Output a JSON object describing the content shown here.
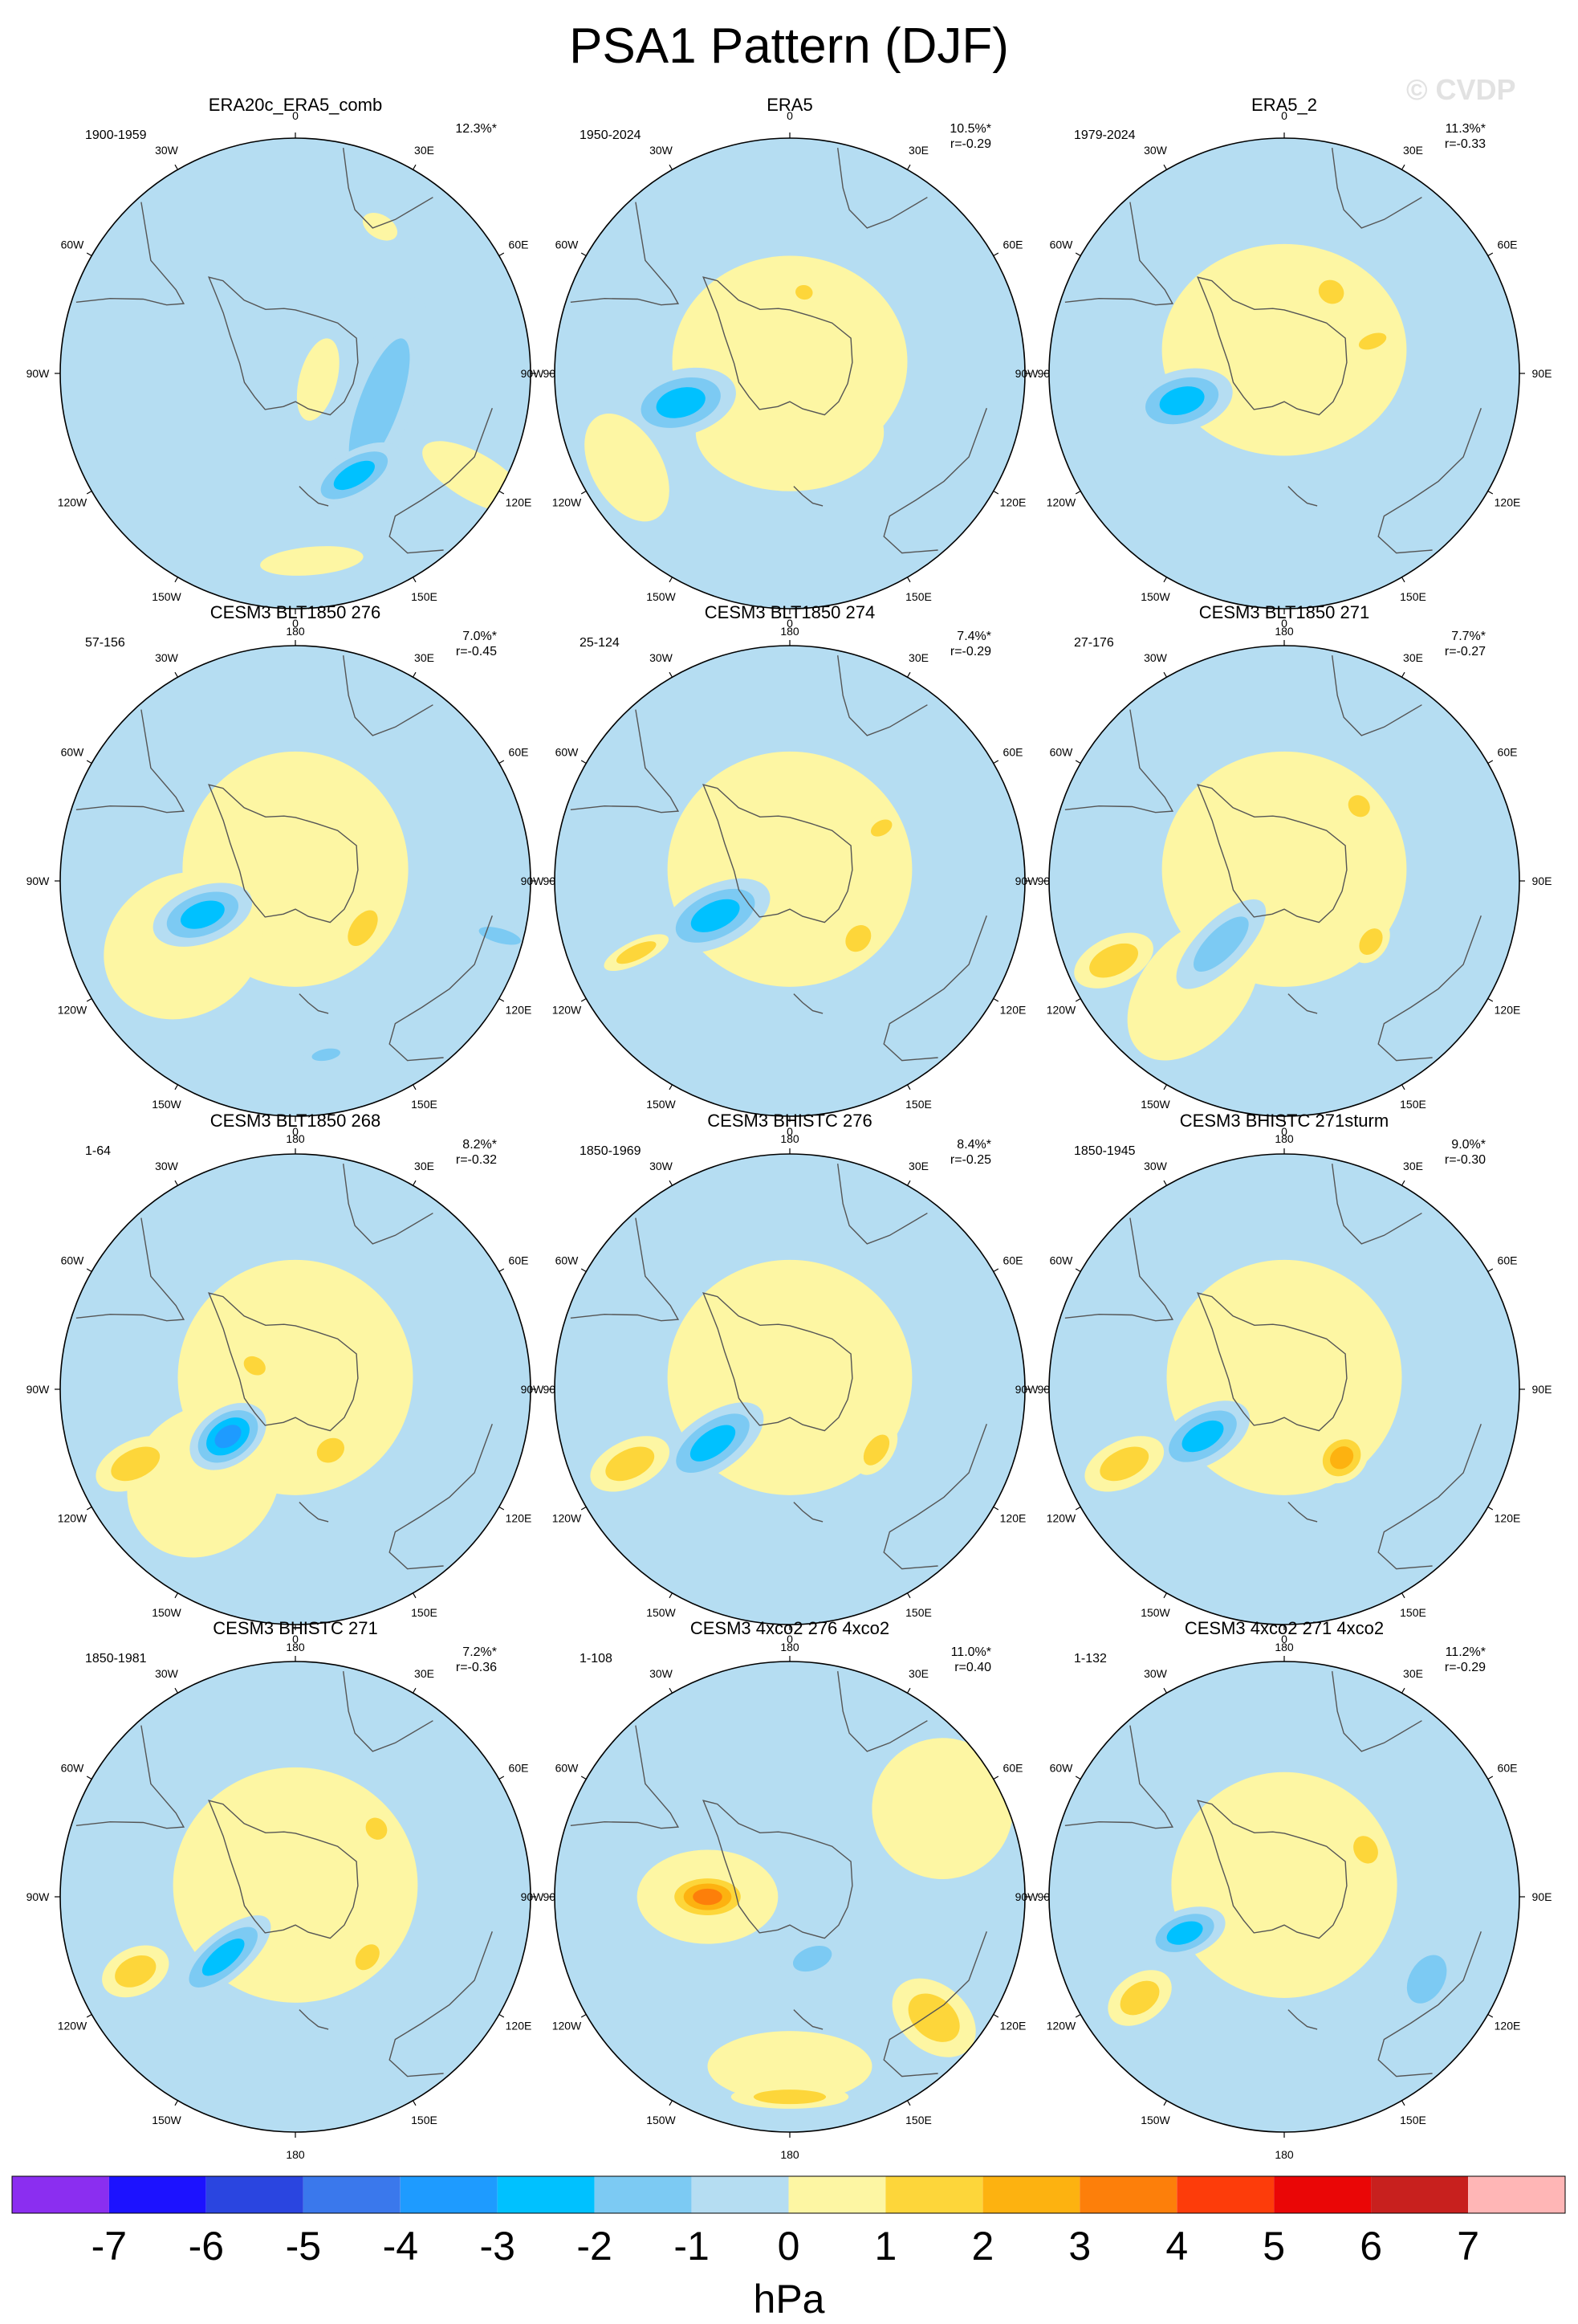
{
  "figure": {
    "title": "PSA1 Pattern (DJF)",
    "copyright": "© CVDP"
  },
  "longitude_labels": [
    "0",
    "30E",
    "60E",
    "90E",
    "120E",
    "150E",
    "180",
    "150W",
    "120W",
    "90W",
    "60W",
    "30W"
  ],
  "colorbar": {
    "unit": "hPa",
    "tick_labels": [
      "-7",
      "-6",
      "-5",
      "-4",
      "-3",
      "-2",
      "-1",
      "0",
      "1",
      "2",
      "3",
      "4",
      "5",
      "6",
      "7"
    ],
    "colors": [
      "#8b2ef0",
      "#1c12ff",
      "#2a45e0",
      "#3a78ec",
      "#1e9bff",
      "#00c1ff",
      "#7ccaf3",
      "#b5ddf2",
      "#fdf6a3",
      "#fdd63a",
      "#fdb210",
      "#fd7f0a",
      "#fd3c0a",
      "#ea0606",
      "#c8201e",
      "#ffb6b6"
    ]
  },
  "chart_data": {
    "type": "heatmap",
    "description_unit": "hPa",
    "color_levels": [
      -7,
      -6,
      -5,
      -4,
      -3,
      -2,
      -1,
      0,
      1,
      2,
      3,
      4,
      5,
      6,
      7
    ],
    "panels": [
      {
        "title": "ERA20c_ERA5_comb",
        "years": "1900-1959",
        "pct": "12.3%*",
        "r": "",
        "features": [
          {
            "lon": 110,
            "r": 0.38,
            "rx": 0.48,
            "ry": 0.14,
            "v": -1.5
          },
          {
            "lon": 150,
            "r": 0.5,
            "rx": 0.22,
            "ry": 0.1,
            "v": -2.5
          },
          {
            "lon": 30,
            "r": 0.72,
            "rx": 0.08,
            "ry": 0.05,
            "v": 0.5
          },
          {
            "lon": 175,
            "r": 0.8,
            "rx": 0.22,
            "ry": 0.06,
            "v": 0.5
          },
          {
            "lon": 105,
            "r": 0.1,
            "rx": 0.18,
            "ry": 0.08,
            "v": 0.5
          },
          {
            "lon": 120,
            "r": 0.88,
            "rx": 0.1,
            "ry": 0.25,
            "v": 0.5
          }
        ]
      },
      {
        "title": "ERA5",
        "years": "1950-2024",
        "pct": "10.5%*",
        "r": "r=-0.29",
        "features": [
          {
            "lon": 0,
            "r": 0.05,
            "rx": 0.5,
            "ry": 0.45,
            "v": 0.5
          },
          {
            "lon": 180,
            "r": 0.25,
            "rx": 0.4,
            "ry": 0.25,
            "v": 0.5
          },
          {
            "lon": 255,
            "r": 0.48,
            "rx": 0.14,
            "ry": 0.24,
            "v": -2.5
          },
          {
            "lon": 10,
            "r": 0.35,
            "rx": 0.06,
            "ry": 0.05,
            "v": 1.5
          },
          {
            "lon": 240,
            "r": 0.8,
            "rx": 0.25,
            "ry": 0.15,
            "v": 0.5
          }
        ]
      },
      {
        "title": "ERA5_2",
        "years": "1979-2024",
        "pct": "11.3%*",
        "r": "r=-0.33",
        "features": [
          {
            "lon": 0,
            "r": 0.1,
            "rx": 0.52,
            "ry": 0.45,
            "v": 0.5
          },
          {
            "lon": 255,
            "r": 0.45,
            "rx": 0.13,
            "ry": 0.22,
            "v": -2.5
          },
          {
            "lon": 30,
            "r": 0.4,
            "rx": 0.09,
            "ry": 0.08,
            "v": 1.5
          },
          {
            "lon": 70,
            "r": 0.4,
            "rx": 0.05,
            "ry": 0.1,
            "v": 1.5
          }
        ]
      },
      {
        "title": "CESM3 BLT1850 276",
        "years": "57-156",
        "pct": "7.0%*",
        "r": "r=-0.45",
        "features": [
          {
            "lon": 0,
            "r": 0.05,
            "rx": 0.48,
            "ry": 0.5,
            "v": 0.5
          },
          {
            "lon": 240,
            "r": 0.55,
            "rx": 0.3,
            "ry": 0.35,
            "v": 0.5
          },
          {
            "lon": 250,
            "r": 0.42,
            "rx": 0.12,
            "ry": 0.22,
            "v": -2.5
          },
          {
            "lon": 125,
            "r": 0.35,
            "rx": 0.14,
            "ry": 0.08,
            "v": 1.5
          },
          {
            "lon": 170,
            "r": 0.75,
            "rx": 0.1,
            "ry": 0.04,
            "v": -1.5
          },
          {
            "lon": 105,
            "r": 0.9,
            "rx": 0.05,
            "ry": 0.15,
            "v": -1.5
          }
        ]
      },
      {
        "title": "CESM3 BLT1850 274",
        "years": "25-124",
        "pct": "7.4%*",
        "r": "r=-0.29",
        "features": [
          {
            "lon": 0,
            "r": 0.05,
            "rx": 0.52,
            "ry": 0.5,
            "v": 0.5
          },
          {
            "lon": 245,
            "r": 0.35,
            "rx": 0.13,
            "ry": 0.25,
            "v": -2.5
          },
          {
            "lon": 130,
            "r": 0.38,
            "rx": 0.1,
            "ry": 0.08,
            "v": 1.5
          },
          {
            "lon": 60,
            "r": 0.45,
            "rx": 0.05,
            "ry": 0.08,
            "v": 1.5
          },
          {
            "lon": 245,
            "r": 0.72,
            "rx": 0.05,
            "ry": 0.15,
            "v": 1.5
          }
        ]
      },
      {
        "title": "CESM3 BLT1850 271",
        "years": "27-176",
        "pct": "7.7%*",
        "r": "r=-0.27",
        "features": [
          {
            "lon": 0,
            "r": 0.05,
            "rx": 0.52,
            "ry": 0.5,
            "v": 0.5
          },
          {
            "lon": 220,
            "r": 0.6,
            "rx": 0.22,
            "ry": 0.35,
            "v": 0.5
          },
          {
            "lon": 225,
            "r": 0.38,
            "rx": 0.1,
            "ry": 0.25,
            "v": -1.5
          },
          {
            "lon": 45,
            "r": 0.45,
            "rx": 0.08,
            "ry": 0.07,
            "v": 1.5
          },
          {
            "lon": 125,
            "r": 0.45,
            "rx": 0.1,
            "ry": 0.07,
            "v": 1.5
          },
          {
            "lon": 245,
            "r": 0.8,
            "rx": 0.1,
            "ry": 0.18,
            "v": 1.5
          }
        ]
      },
      {
        "title": "CESM3 BLT1850 268",
        "years": "1-64",
        "pct": "8.2%*",
        "r": "r=-0.32",
        "features": [
          {
            "lon": 0,
            "r": 0.05,
            "rx": 0.5,
            "ry": 0.5,
            "v": 0.5
          },
          {
            "lon": 225,
            "r": 0.55,
            "rx": 0.3,
            "ry": 0.35,
            "v": 0.5
          },
          {
            "lon": 235,
            "r": 0.35,
            "rx": 0.12,
            "ry": 0.18,
            "v": -3.5
          },
          {
            "lon": 300,
            "r": 0.2,
            "rx": 0.06,
            "ry": 0.08,
            "v": 1.5
          },
          {
            "lon": 150,
            "r": 0.3,
            "rx": 0.1,
            "ry": 0.08,
            "v": 1.5
          },
          {
            "lon": 245,
            "r": 0.75,
            "rx": 0.1,
            "ry": 0.18,
            "v": 1.5
          }
        ]
      },
      {
        "title": "CESM3 BHISTC 276",
        "years": "1850-1969",
        "pct": "8.4%*",
        "r": "r=-0.25",
        "features": [
          {
            "lon": 0,
            "r": 0.05,
            "rx": 0.52,
            "ry": 0.5,
            "v": 0.5
          },
          {
            "lon": 235,
            "r": 0.4,
            "rx": 0.12,
            "ry": 0.25,
            "v": -2.5
          },
          {
            "lon": 125,
            "r": 0.45,
            "rx": 0.12,
            "ry": 0.07,
            "v": 1.5
          },
          {
            "lon": 245,
            "r": 0.75,
            "rx": 0.1,
            "ry": 0.18,
            "v": 1.5
          }
        ]
      },
      {
        "title": "CESM3 BHISTC 271sturm",
        "years": "1850-1945",
        "pct": "9.0%*",
        "r": "r=-0.30",
        "features": [
          {
            "lon": 0,
            "r": 0.05,
            "rx": 0.5,
            "ry": 0.5,
            "v": 0.5
          },
          {
            "lon": 240,
            "r": 0.4,
            "rx": 0.12,
            "ry": 0.22,
            "v": -2.5
          },
          {
            "lon": 140,
            "r": 0.38,
            "rx": 0.12,
            "ry": 0.1,
            "v": 2.5
          },
          {
            "lon": 245,
            "r": 0.75,
            "rx": 0.1,
            "ry": 0.18,
            "v": 1.5
          }
        ]
      },
      {
        "title": "CESM3 BHISTC 271",
        "years": "1850-1981",
        "pct": "7.2%*",
        "r": "r=-0.36",
        "features": [
          {
            "lon": 0,
            "r": 0.05,
            "rx": 0.52,
            "ry": 0.5,
            "v": 0.5
          },
          {
            "lon": 230,
            "r": 0.4,
            "rx": 0.1,
            "ry": 0.25,
            "v": -2.5
          },
          {
            "lon": 50,
            "r": 0.45,
            "rx": 0.08,
            "ry": 0.07,
            "v": 1.5
          },
          {
            "lon": 130,
            "r": 0.4,
            "rx": 0.1,
            "ry": 0.07,
            "v": 1.5
          },
          {
            "lon": 245,
            "r": 0.75,
            "rx": 0.1,
            "ry": 0.15,
            "v": 1.5
          }
        ]
      },
      {
        "title": "CESM3 4xco2 276 4xco2",
        "years": "1-108",
        "pct": "11.0%*",
        "r": "r=0.40",
        "features": [
          {
            "lon": 270,
            "r": 0.35,
            "rx": 0.2,
            "ry": 0.3,
            "v": 0.5
          },
          {
            "lon": 60,
            "r": 0.75,
            "rx": 0.3,
            "ry": 0.3,
            "v": 0.5
          },
          {
            "lon": 180,
            "r": 0.72,
            "rx": 0.35,
            "ry": 0.15,
            "v": 0.5
          },
          {
            "lon": 270,
            "r": 0.35,
            "rx": 0.1,
            "ry": 0.18,
            "v": 3.5
          },
          {
            "lon": 130,
            "r": 0.8,
            "rx": 0.14,
            "ry": 0.2,
            "v": 1.5
          },
          {
            "lon": 160,
            "r": 0.28,
            "rx": 0.14,
            "ry": 0.08,
            "v": -1.5
          },
          {
            "lon": 180,
            "r": 0.85,
            "rx": 0.25,
            "ry": 0.05,
            "v": 1.5
          }
        ]
      },
      {
        "title": "CESM3 4xco2 271 4xco2",
        "years": "1-132",
        "pct": "11.2%*",
        "r": "r=-0.29",
        "features": [
          {
            "lon": 0,
            "r": 0.05,
            "rx": 0.48,
            "ry": 0.48,
            "v": 0.5
          },
          {
            "lon": 250,
            "r": 0.45,
            "rx": 0.1,
            "ry": 0.18,
            "v": -2.5
          },
          {
            "lon": 60,
            "r": 0.4,
            "rx": 0.1,
            "ry": 0.08,
            "v": 1.5
          },
          {
            "lon": 120,
            "r": 0.7,
            "rx": 0.18,
            "ry": 0.12,
            "v": -1.5
          },
          {
            "lon": 235,
            "r": 0.75,
            "rx": 0.1,
            "ry": 0.15,
            "v": 1.5
          }
        ]
      }
    ]
  }
}
